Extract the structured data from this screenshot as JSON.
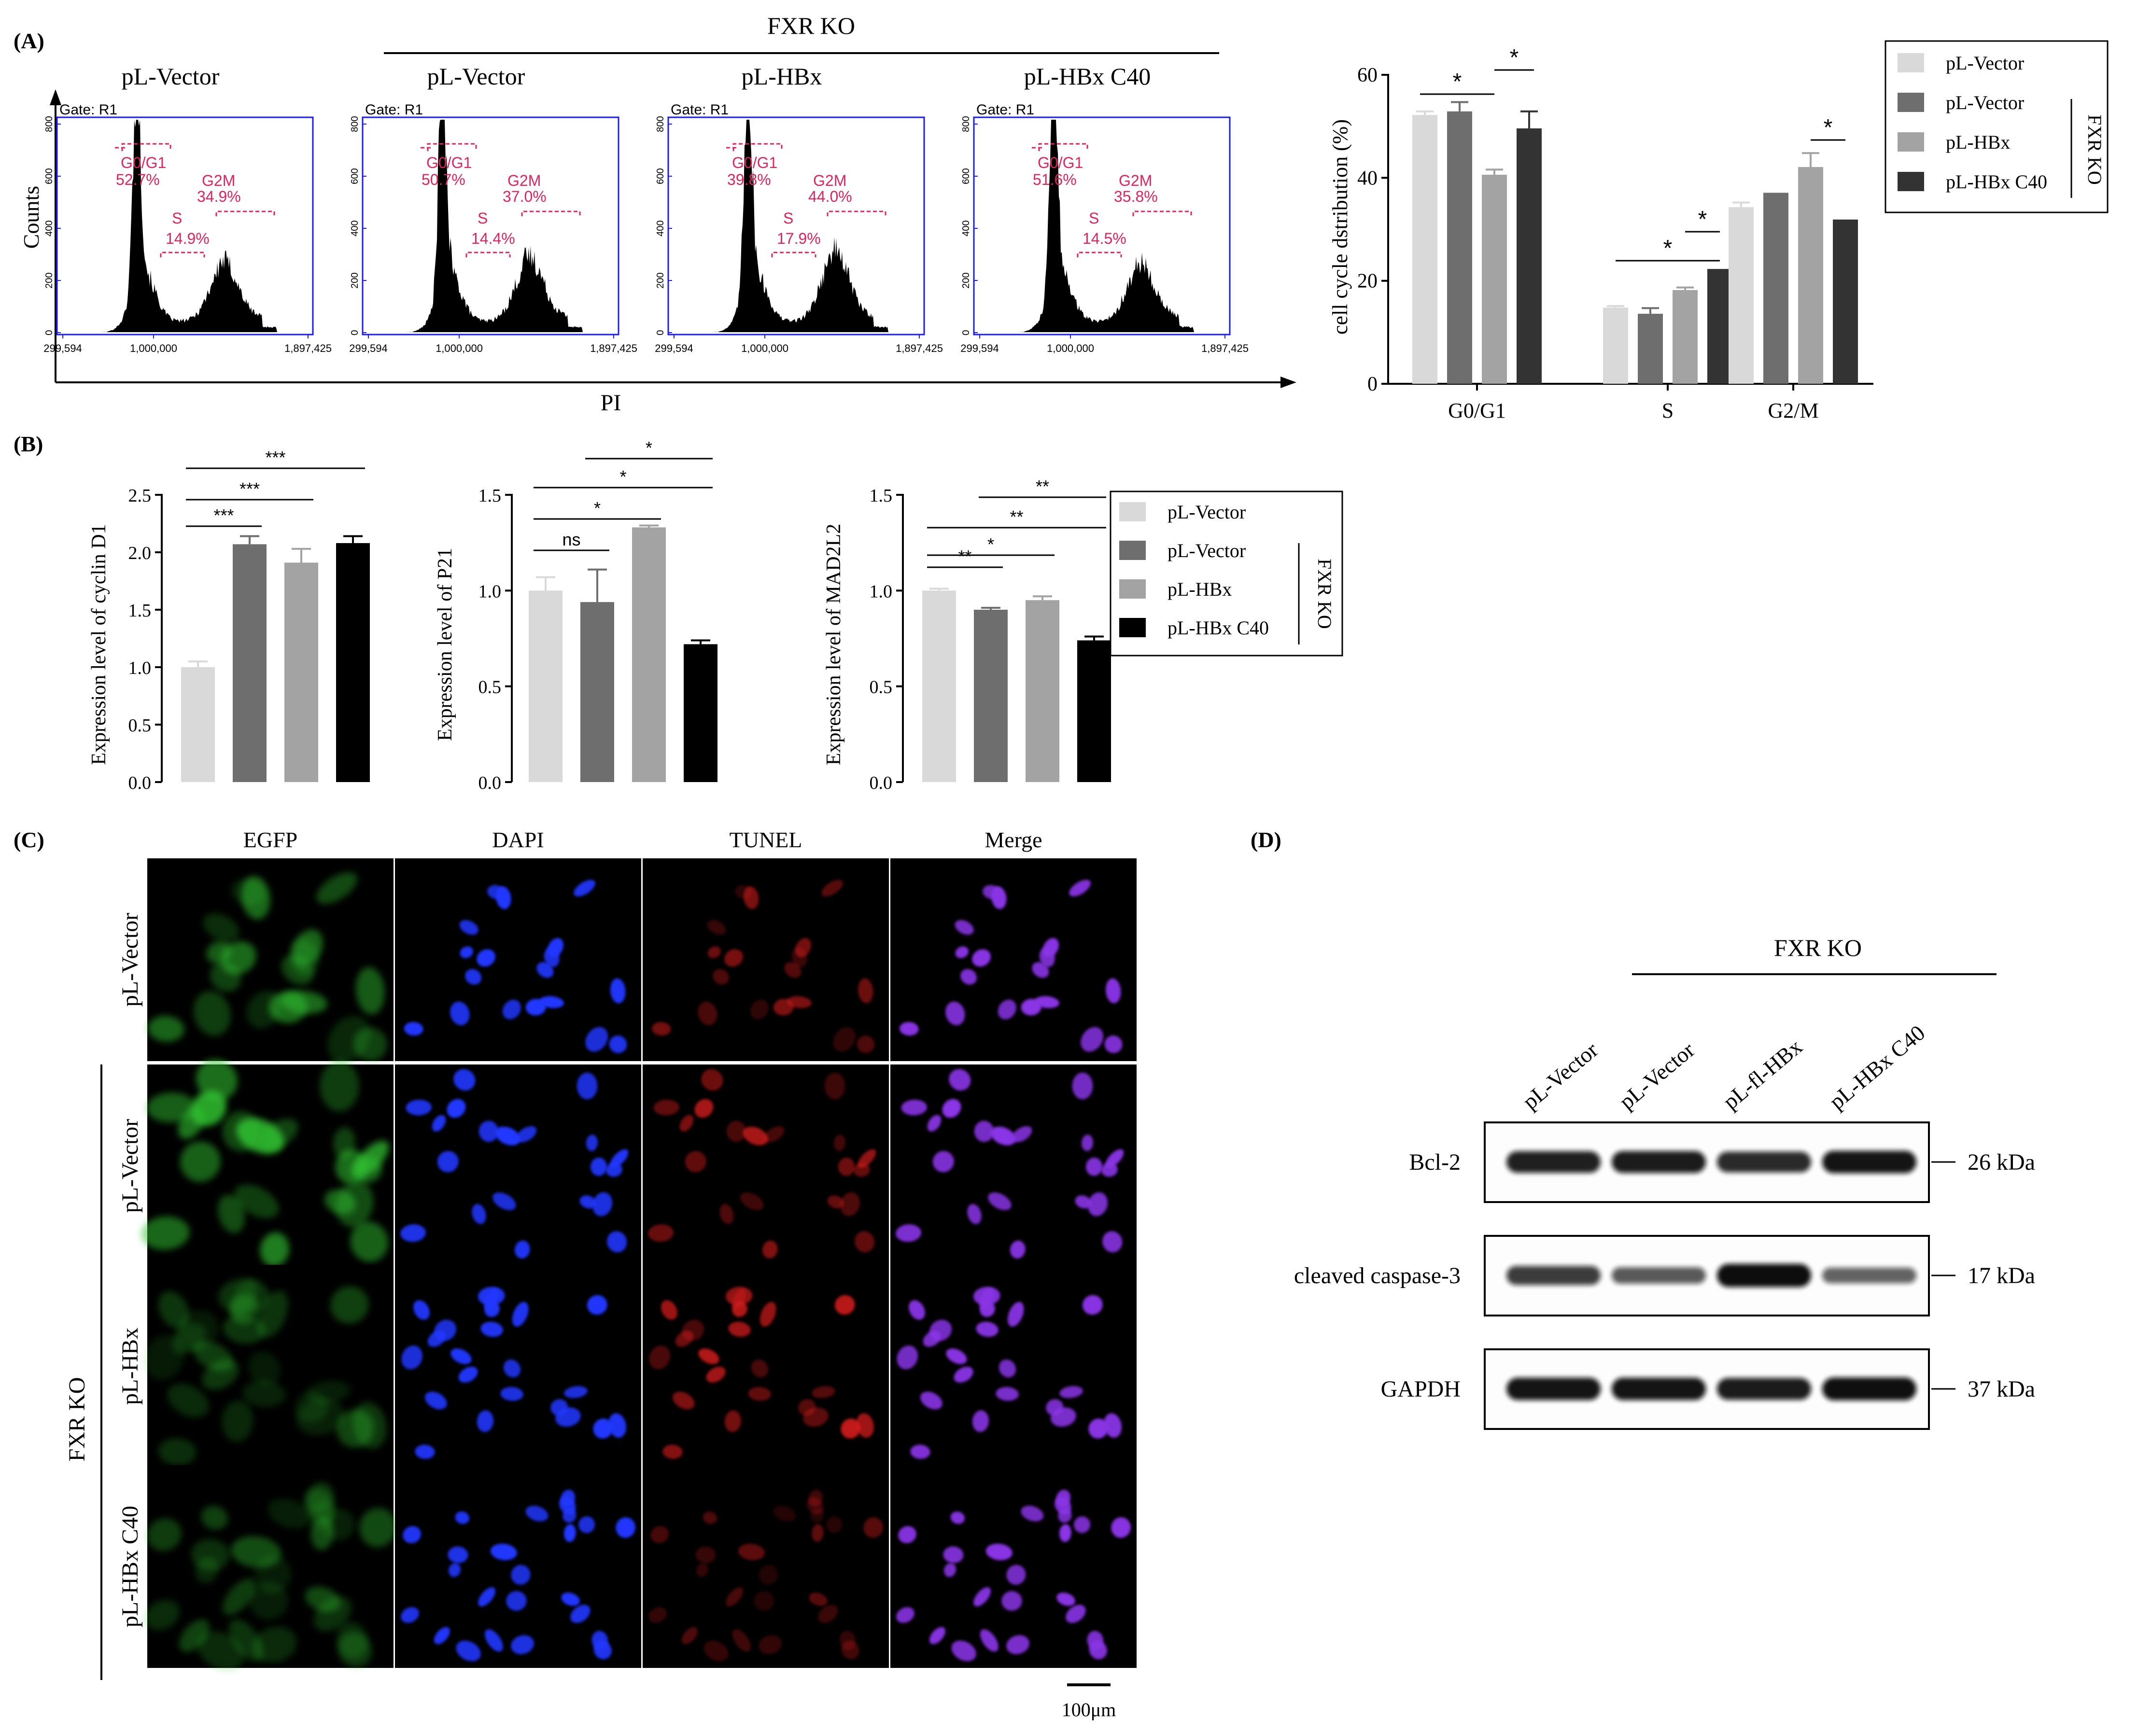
{
  "panel_letters": {
    "a": "(A)",
    "b": "(B)",
    "c": "(C)",
    "d": "(D)"
  },
  "common": {
    "vector": "pL-Vector",
    "hbx": "pL-HBx",
    "hbx_c40": "pL-HBx C40",
    "fxr_ko": "FXR KO"
  },
  "flow": {
    "y_title": "Counts",
    "x_title": "PI",
    "gate": "Gate: R1",
    "y_ticks": [
      "0",
      "200",
      "400",
      "600",
      "800"
    ],
    "x_ticks": [
      "299,594",
      "1,000,000",
      "1,897,425"
    ],
    "region_labels": {
      "g0g1": "G0/G1",
      "s": "S",
      "g2m": "G2M"
    },
    "plots": [
      {
        "title": "pL-Vector",
        "g0g1": "52.7%",
        "s": "14.9%",
        "g2m": "34.9%"
      },
      {
        "title": "pL-Vector",
        "g0g1": "50.7%",
        "s": "14.4%",
        "g2m": "37.0%"
      },
      {
        "title": "pL-HBx",
        "g0g1": "39.8%",
        "s": "17.9%",
        "g2m": "44.0%"
      },
      {
        "title": "pL-HBx C40",
        "g0g1": "51.6%",
        "s": "14.5%",
        "g2m": "35.8%"
      }
    ]
  },
  "chart_data": [
    {
      "type": "bar",
      "ylabel": "cell cycle dstribution (%)",
      "categories": [
        "G0/G1",
        "S",
        "G2/M"
      ],
      "ylim": [
        0,
        60
      ],
      "yticks": [
        "0",
        "20",
        "40",
        "60"
      ],
      "legend_placement": "top-right",
      "series": [
        {
          "name": "pL-Vector",
          "values": [
            52.2,
            14.8,
            34.3
          ],
          "errors": [
            0.7,
            0.3,
            0.9
          ],
          "color": "#d9d9d9"
        },
        {
          "name": "pL-Vector",
          "values": [
            52.9,
            13.6,
            37.1
          ],
          "errors": [
            1.8,
            1.1,
            0.0
          ],
          "color": "#6e6e6e"
        },
        {
          "name": "pL-HBx",
          "values": [
            40.6,
            18.2,
            42.1
          ],
          "errors": [
            1.0,
            0.5,
            2.7
          ],
          "color": "#a3a3a3"
        },
        {
          "name": "pL-HBx C40",
          "values": [
            49.6,
            22.3,
            31.9
          ],
          "errors": [
            3.3,
            0.0,
            0.0
          ],
          "color": "#333333"
        }
      ],
      "significance": [
        {
          "category": 0,
          "from": 0,
          "to": 2,
          "label": "*"
        },
        {
          "category": 0,
          "from": 2,
          "to": 3,
          "label": "*"
        },
        {
          "category": 1,
          "from": 2,
          "to": 3,
          "label": "*"
        },
        {
          "category": 1,
          "from": 0,
          "to": 3,
          "label": "*"
        },
        {
          "category": 2,
          "from": 2,
          "to": 3,
          "label": "*"
        }
      ]
    },
    {
      "type": "bar",
      "ylabel": "Expression level of cyclin D1",
      "categories": [
        "pL-Vector",
        "pL-Vector",
        "pL-HBx",
        "pL-HBx C40"
      ],
      "values": [
        1.0,
        2.07,
        1.91,
        2.08
      ],
      "errors": [
        0.05,
        0.07,
        0.12,
        0.06
      ],
      "ylim": [
        0,
        2.5
      ],
      "yticks": [
        "0.0",
        "0.5",
        "1.0",
        "1.5",
        "2.0",
        "2.5"
      ],
      "significance": [
        {
          "from": 0,
          "to": 1,
          "label": "***"
        },
        {
          "from": 0,
          "to": 2,
          "label": "***"
        },
        {
          "from": 0,
          "to": 3,
          "label": "***"
        }
      ]
    },
    {
      "type": "bar",
      "ylabel": "Expression level of P21",
      "categories": [
        "pL-Vector",
        "pL-Vector",
        "pL-HBx",
        "pL-HBx C40"
      ],
      "values": [
        1.0,
        0.94,
        1.33,
        0.72
      ],
      "errors": [
        0.07,
        0.17,
        0.01,
        0.02
      ],
      "ylim": [
        0,
        1.5
      ],
      "yticks": [
        "0.0",
        "0.5",
        "1.0",
        "1.5"
      ],
      "significance": [
        {
          "from": 0,
          "to": 1,
          "label": "ns"
        },
        {
          "from": 0,
          "to": 2,
          "label": "*"
        },
        {
          "from": 0,
          "to": 3,
          "label": "*"
        },
        {
          "from": 1,
          "to": 3,
          "label": "*"
        }
      ]
    },
    {
      "type": "bar",
      "ylabel": "Expression level of MAD2L2",
      "categories": [
        "pL-Vector",
        "pL-Vector",
        "pL-HBx",
        "pL-HBx C40"
      ],
      "values": [
        1.0,
        0.9,
        0.95,
        0.74
      ],
      "errors": [
        0.01,
        0.01,
        0.02,
        0.02
      ],
      "ylim": [
        0,
        1.5
      ],
      "yticks": [
        "0.0",
        "0.5",
        "1.0",
        "1.5"
      ],
      "significance": [
        {
          "from": 0,
          "to": 1,
          "label": "**"
        },
        {
          "from": 0,
          "to": 2,
          "label": "*"
        },
        {
          "from": 0,
          "to": 3,
          "label": "**"
        },
        {
          "from": 1,
          "to": 3,
          "label": "**"
        }
      ]
    }
  ],
  "bar_colors_b": [
    "#d9d9d9",
    "#6e6e6e",
    "#a3a3a3",
    "#000000"
  ],
  "micro": {
    "columns": [
      "EGFP",
      "DAPI",
      "TUNEL",
      "Merge"
    ],
    "rows": [
      "pL-Vector",
      "pL-Vector",
      "pL-HBx",
      "pL-HBx C40"
    ],
    "group": "FXR KO",
    "scale_bar": "100μm",
    "channel_colors": [
      "#33c433",
      "#2438ff",
      "#d21e1e",
      "#8a36e6"
    ]
  },
  "blot": {
    "header": "FXR KO",
    "lanes": [
      "pL-Vector",
      "pL-Vector",
      "pL-fl-HBx",
      "pL-HBx C40"
    ],
    "proteins": [
      {
        "name": "Bcl-2",
        "size": "26 kDa",
        "intensities": [
          0.88,
          0.9,
          0.82,
          0.95
        ]
      },
      {
        "name": "cleaved caspase-3",
        "size": "17  kDa",
        "intensities": [
          0.7,
          0.5,
          1.0,
          0.45
        ]
      },
      {
        "name": "GAPDH",
        "size": "37 kDa",
        "intensities": [
          0.95,
          0.95,
          0.9,
          0.98
        ]
      }
    ]
  }
}
